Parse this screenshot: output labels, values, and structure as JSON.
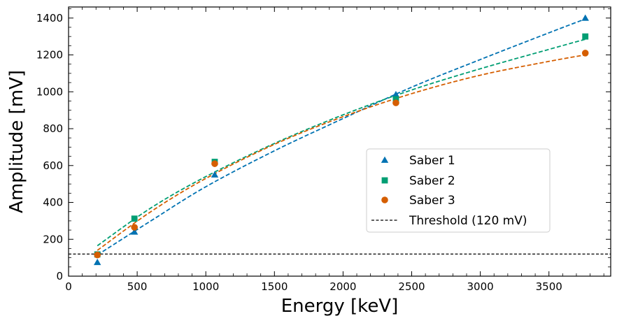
{
  "chart_data": {
    "type": "scatter",
    "title": "",
    "xlabel": "Energy [keV]",
    "ylabel": "Amplitude [mV]",
    "xlim": [
      0,
      3950
    ],
    "ylim": [
      0,
      1460
    ],
    "x_ticks": [
      0,
      500,
      1000,
      1500,
      2000,
      2500,
      3000,
      3500
    ],
    "y_ticks": [
      0,
      200,
      400,
      600,
      800,
      1000,
      1200,
      1400
    ],
    "x_tick_labels": [
      "0",
      "500",
      "1000",
      "1500",
      "2000",
      "2500",
      "3000",
      "3500"
    ],
    "y_tick_labels": [
      "0",
      "200",
      "400",
      "600",
      "800",
      "1000",
      "1200",
      "1400"
    ],
    "x": [
      210,
      480,
      1065,
      2385,
      3765
    ],
    "series": [
      {
        "name": "Saber 1",
        "marker": "triangle",
        "color": "#0072B2",
        "values": [
          75,
          240,
          550,
          985,
          1400
        ],
        "fit_x": [
          210,
          600,
          1000,
          1500,
          2000,
          2500,
          3000,
          3500,
          3765
        ],
        "fit_y": [
          115,
          300,
          485,
          680,
          855,
          1025,
          1175,
          1320,
          1395
        ]
      },
      {
        "name": "Saber 2",
        "marker": "square",
        "color": "#009E73",
        "values": [
          118,
          312,
          620,
          960,
          1300
        ],
        "fit_x": [
          210,
          600,
          1000,
          1500,
          2000,
          2500,
          3000,
          3500,
          3765
        ],
        "fit_y": [
          165,
          370,
          540,
          720,
          875,
          1010,
          1125,
          1230,
          1285
        ]
      },
      {
        "name": "Saber 3",
        "marker": "circle",
        "color": "#D55E00",
        "values": [
          115,
          265,
          610,
          940,
          1210
        ],
        "fit_x": [
          210,
          600,
          1000,
          1500,
          2000,
          2500,
          3000,
          3500,
          3765
        ],
        "fit_y": [
          140,
          350,
          530,
          715,
          865,
          990,
          1090,
          1165,
          1200
        ]
      }
    ],
    "threshold": {
      "name": "Threshold (120 mV)",
      "value": 120,
      "color": "#000000"
    },
    "grid": false,
    "legend_position": "center-right"
  }
}
